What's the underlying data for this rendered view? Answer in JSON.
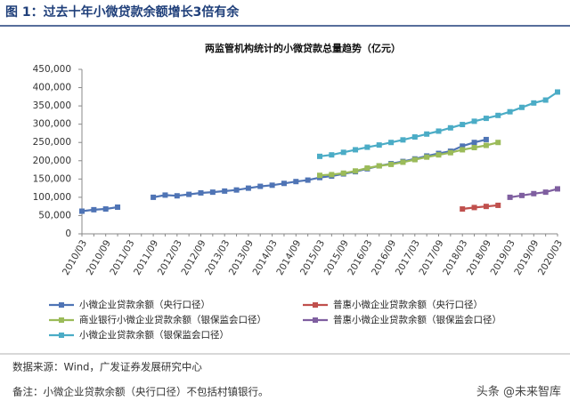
{
  "header": {
    "title": "图 1：过去十年小微贷款余额增长3倍有余"
  },
  "chart_data": {
    "type": "line",
    "title": "两监管机构统计的小微贷款总量趋势（亿元）",
    "categories": [
      "2010/03",
      null,
      "2010/09",
      null,
      "2011/03",
      null,
      "2011/09",
      null,
      "2012/03",
      null,
      "2012/09",
      null,
      "2013/03",
      null,
      "2013/09",
      null,
      "2014/03",
      null,
      "2014/09",
      null,
      "2015/03",
      null,
      "2015/09",
      null,
      "2016/03",
      null,
      "2016/09",
      null,
      "2017/03",
      null,
      "2017/09",
      null,
      "2018/03",
      null,
      "2018/09",
      null,
      "2019/03",
      null,
      "2019/09",
      null,
      "2020/03"
    ],
    "series": [
      {
        "name": "小微企业贷款余额（央行口径）",
        "color": "#4f74b5",
        "values": [
          62000,
          66000,
          68000,
          73000,
          null,
          null,
          100000,
          106000,
          104000,
          108000,
          112000,
          114000,
          117000,
          120000,
          125000,
          130000,
          133000,
          138000,
          143000,
          147000,
          154000,
          158000,
          164000,
          170000,
          178000,
          186000,
          192000,
          198000,
          205000,
          213000,
          220000,
          226000,
          240000,
          250000,
          258000,
          null,
          null,
          null,
          null,
          null,
          null
        ]
      },
      {
        "name": "普惠小微企业贷款余额（央行口径）",
        "color": "#c0504d",
        "values": [
          null,
          null,
          null,
          null,
          null,
          null,
          null,
          null,
          null,
          null,
          null,
          null,
          null,
          null,
          null,
          null,
          null,
          null,
          null,
          null,
          null,
          null,
          null,
          null,
          null,
          null,
          null,
          null,
          null,
          null,
          null,
          null,
          68000,
          72000,
          75000,
          78000,
          null,
          null,
          null,
          null,
          null
        ]
      },
      {
        "name": "商业银行小微企业贷款余额（银保监会口径）",
        "color": "#9bbb59",
        "values": [
          null,
          null,
          null,
          null,
          null,
          null,
          null,
          null,
          null,
          null,
          null,
          null,
          null,
          null,
          null,
          null,
          null,
          null,
          null,
          null,
          160000,
          162000,
          166000,
          172000,
          180000,
          186000,
          190000,
          196000,
          203000,
          210000,
          216000,
          222000,
          230000,
          236000,
          242000,
          250000,
          null,
          null,
          null,
          null,
          null
        ]
      },
      {
        "name": "普惠小微企业贷款余额（银保监会口径）",
        "color": "#7f5fa0",
        "values": [
          null,
          null,
          null,
          null,
          null,
          null,
          null,
          null,
          null,
          null,
          null,
          null,
          null,
          null,
          null,
          null,
          null,
          null,
          null,
          null,
          null,
          null,
          null,
          null,
          null,
          null,
          null,
          null,
          null,
          null,
          null,
          null,
          null,
          null,
          null,
          null,
          100000,
          105000,
          110000,
          114000,
          123000
        ]
      },
      {
        "name": "小微企业贷款余额（银保监会口径）",
        "color": "#4bacc6",
        "values": [
          null,
          null,
          null,
          null,
          null,
          null,
          null,
          null,
          null,
          null,
          null,
          null,
          null,
          null,
          null,
          null,
          null,
          null,
          null,
          null,
          212000,
          216000,
          223000,
          230000,
          237000,
          243000,
          250000,
          257000,
          265000,
          273000,
          281000,
          290000,
          299000,
          308000,
          316000,
          324000,
          334000,
          346000,
          358000,
          366000,
          388000
        ]
      }
    ],
    "ylim": [
      0,
      450000
    ],
    "yticks": [
      0,
      {
        "value": 50000,
        "label": "50,000"
      },
      {
        "value": 100000,
        "label": "100,000"
      },
      {
        "value": 150000,
        "label": "150,000"
      },
      {
        "value": 200000,
        "label": "200,000"
      },
      {
        "value": 250000,
        "label": "250,000"
      },
      {
        "value": 300000,
        "label": "300,000"
      },
      {
        "value": 350000,
        "label": "350,000"
      },
      {
        "value": 400000,
        "label": "400,000"
      },
      {
        "value": 450000,
        "label": "450,000"
      }
    ]
  },
  "footer": {
    "source": "数据来源：Wind，广发证券发展研究中心",
    "note": "备注：小微企业贷款余额（央行口径）不包括村镇银行。"
  },
  "watermark": "头条 @未来智库"
}
